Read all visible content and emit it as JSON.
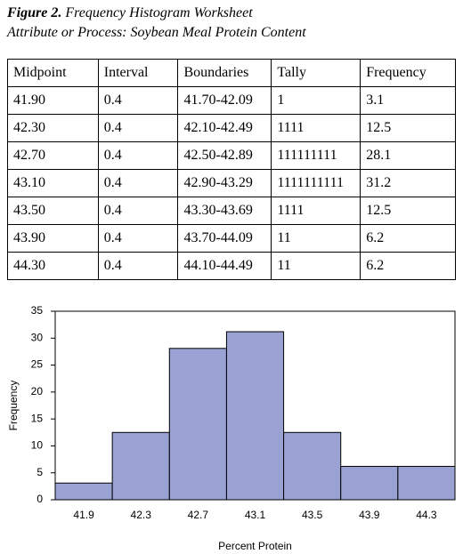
{
  "caption": {
    "label": "Figure 2.",
    "title": "Frequency Histogram Worksheet",
    "subtitle": "Attribute or Process: Soybean Meal Protein Content"
  },
  "table": {
    "header": [
      "Midpoint",
      "Interval",
      "Boundaries",
      "Tally",
      "Frequency"
    ],
    "rows": [
      [
        "41.90",
        "0.4",
        "41.70-42.09",
        "1",
        "3.1"
      ],
      [
        "42.30",
        "0.4",
        "42.10-42.49",
        "1111",
        "12.5"
      ],
      [
        "42.70",
        "0.4",
        "42.50-42.89",
        "111111111",
        "28.1"
      ],
      [
        "43.10",
        "0.4",
        "42.90-43.29",
        "1111111111",
        "31.2"
      ],
      [
        "43.50",
        "0.4",
        "43.30-43.69",
        "1111",
        "12.5"
      ],
      [
        "43.90",
        "0.4",
        "43.70-44.09",
        "11",
        "6.2"
      ],
      [
        "44.30",
        "0.4",
        "44.10-44.49",
        "11",
        "6.2"
      ]
    ]
  },
  "chart_data": {
    "type": "bar",
    "x_label": "Percent Protein",
    "y_label": "Frequency",
    "categories": [
      "41.9",
      "42.3",
      "42.7",
      "43.1",
      "43.5",
      "43.9",
      "44.3"
    ],
    "values": [
      3.1,
      12.5,
      28.1,
      31.2,
      12.5,
      6.2,
      6.2
    ],
    "color": "#9aa2d4",
    "ylim": [
      0,
      35
    ],
    "yticks": [
      0,
      5,
      10,
      15,
      20,
      25,
      30,
      35
    ]
  }
}
